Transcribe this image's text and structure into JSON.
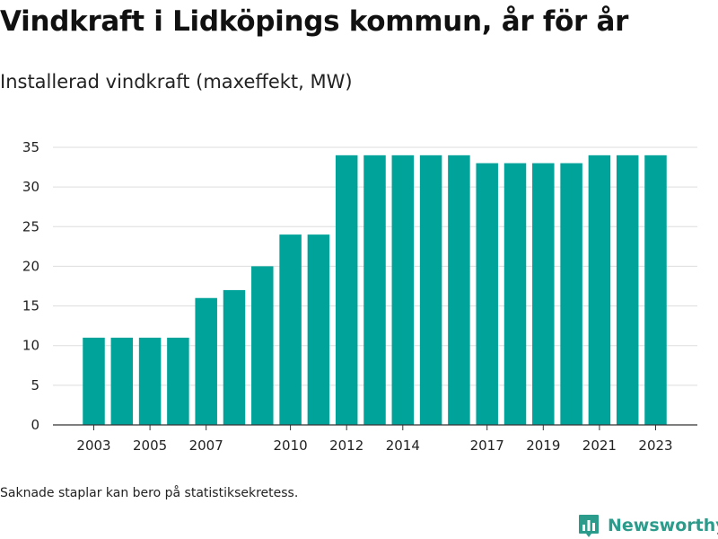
{
  "header": {
    "title": "Vindkraft i Lidköpings kommun, år för år",
    "subtitle": "Installerad vindkraft (maxeffekt, MW)"
  },
  "footer": {
    "note": "Saknade staplar kan bero på statistiksekretess.",
    "brand_name": "Newsworthy",
    "brand_icon": "bar-chart-logo-icon"
  },
  "colors": {
    "bar": "#00a39a",
    "grid": "#dddddd",
    "axis": "#333333",
    "brand": "#2b9c8c"
  },
  "chart_data": {
    "type": "bar",
    "categories": [
      "2003",
      "2004",
      "2005",
      "2006",
      "2007",
      "2008",
      "2009",
      "2010",
      "2011",
      "2012",
      "2013",
      "2014",
      "2015",
      "2016",
      "2017",
      "2018",
      "2019",
      "2020",
      "2021",
      "2022",
      "2023"
    ],
    "values": [
      11,
      11,
      11,
      11,
      16,
      17,
      20,
      24,
      24,
      34,
      34,
      34,
      34,
      34,
      33,
      33,
      33,
      33,
      34,
      34,
      34
    ],
    "x_tick_labels": [
      "2003",
      "2005",
      "2007",
      "2010",
      "2012",
      "2014",
      "2017",
      "2019",
      "2021",
      "2023"
    ],
    "y_ticks": [
      0,
      5,
      10,
      15,
      20,
      25,
      30,
      35
    ],
    "ylim": [
      0,
      35
    ],
    "grid": "horizontal",
    "legend": "none",
    "title": "Vindkraft i Lidköpings kommun, år för år",
    "subtitle": "Installerad vindkraft (maxeffekt, MW)",
    "xlabel": "",
    "ylabel": ""
  }
}
